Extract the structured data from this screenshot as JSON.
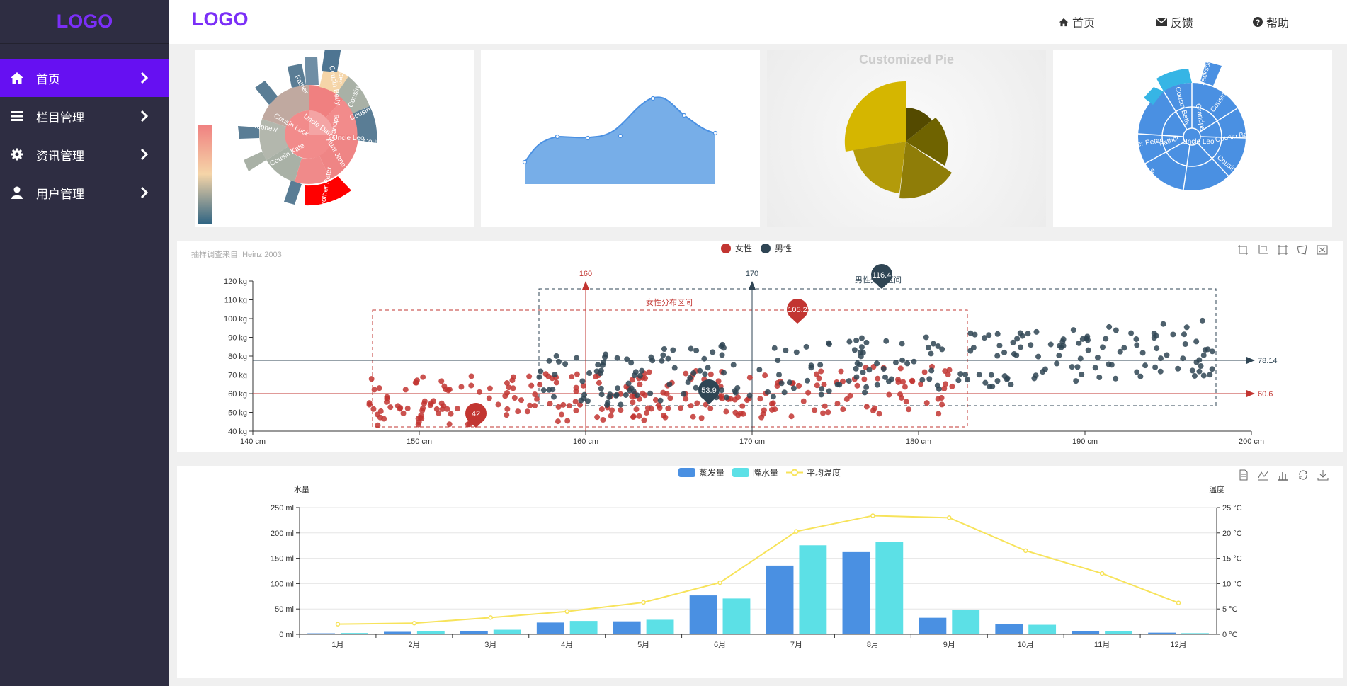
{
  "sidebar": {
    "logo": "LOGO",
    "items": [
      {
        "label": "首页",
        "icon": "home-icon",
        "active": true
      },
      {
        "label": "栏目管理",
        "icon": "list-icon",
        "active": false
      },
      {
        "label": "资讯管理",
        "icon": "gear-icon",
        "active": false
      },
      {
        "label": "用户管理",
        "icon": "user-icon",
        "active": false
      }
    ]
  },
  "header": {
    "logo": "LOGO",
    "nav": [
      {
        "label": "首页",
        "icon": "home-icon"
      },
      {
        "label": "反馈",
        "icon": "envelope-icon"
      },
      {
        "label": "帮助",
        "icon": "question-circle-icon"
      }
    ]
  },
  "colors": {
    "sidebar_bg": "#2e2d42",
    "accent": "#6610f2",
    "logo": "#7b2ff7",
    "female": "#c23531",
    "male": "#2f4554",
    "evaporation": "#4a90e2",
    "precipitation": "#5ce0e6",
    "temperature": "#f7e35a"
  },
  "sunburst_1": {
    "labels": [
      "Uncle Leo",
      "Cousin Ben",
      "Cousin Jack",
      "Me",
      "Brother Peter",
      "Aunt Jane",
      "Cousin Kate",
      "Nephew",
      "Cousin Luck",
      "Uncle Dan",
      "Grandpa",
      "Jackson",
      "Cousin Mary",
      "Cousin Betty",
      "Father"
    ]
  },
  "pie_title": "Customized Pie",
  "sunburst_2": {
    "labels": [
      "Jackson",
      "Cousin Mary",
      "Uncle Leo",
      "Cousin Ben",
      "Father",
      "Brother Peter",
      "Me",
      "Cousin Jack",
      "Grandpa",
      "Cousin Betty"
    ]
  },
  "scatter": {
    "subtitle": "抽样调查来自: Heinz  2003",
    "legend": [
      "女性",
      "男性"
    ],
    "x_ticks": [
      "140 cm",
      "150 cm",
      "160 cm",
      "170 cm",
      "180 cm",
      "190 cm",
      "200 cm"
    ],
    "y_ticks": [
      "40 kg",
      "50 kg",
      "60 kg",
      "70 kg",
      "80 kg",
      "90 kg",
      "100 kg",
      "110 kg",
      "120 kg"
    ],
    "female_area_label": "女性分布区间",
    "male_area_label": "男性分布区间",
    "female_max": "105.2",
    "female_min": "42",
    "male_max": "116.4",
    "male_min": "53.9",
    "female_avg": "60.6",
    "male_avg": "78.14",
    "female_vline": "160",
    "male_vline": "170"
  },
  "chart_data": [
    {
      "type": "scatter",
      "title": "",
      "subtitle": "抽样调查来自: Heinz  2003",
      "xlim": [
        140,
        200
      ],
      "ylim": [
        40,
        120
      ],
      "x_unit": "cm",
      "y_unit": "kg",
      "legend": "top-center",
      "series": [
        {
          "name": "女性",
          "color": "#c23531"
        },
        {
          "name": "男性",
          "color": "#2f4554"
        }
      ],
      "mark_points": {
        "女性": {
          "max": 105.2,
          "min": 42
        },
        "男性": {
          "max": 116.4,
          "min": 53.9
        }
      },
      "mark_lines": {
        "女性_avg": 60.6,
        "男性_avg": 78.14,
        "女性_x": 160,
        "男性_x": 170
      }
    },
    {
      "type": "bar",
      "categories": [
        "1月",
        "2月",
        "3月",
        "4月",
        "5月",
        "6月",
        "7月",
        "8月",
        "9月",
        "10月",
        "11月",
        "12月"
      ],
      "series": [
        {
          "name": "蒸发量",
          "values": [
            2.0,
            4.9,
            7.0,
            23.2,
            25.6,
            76.7,
            135.6,
            162.2,
            32.6,
            20.0,
            6.4,
            3.3
          ]
        },
        {
          "name": "降水量",
          "values": [
            2.6,
            5.9,
            9.0,
            26.4,
            28.7,
            70.7,
            175.6,
            182.2,
            48.7,
            18.8,
            6.0,
            2.3
          ]
        },
        {
          "name": "平均温度",
          "type": "line",
          "axis": "right",
          "values": [
            2.0,
            2.2,
            3.3,
            4.5,
            6.3,
            10.2,
            20.3,
            23.4,
            23.0,
            16.5,
            12.0,
            6.2
          ]
        }
      ],
      "ylabel": "水量",
      "ylabel_right": "温度",
      "ylim": [
        0,
        250
      ],
      "ylim_right": [
        0,
        25
      ],
      "y_ticks": [
        "0 ml",
        "50 ml",
        "100 ml",
        "150 ml",
        "200 ml",
        "250 ml"
      ],
      "y_ticks_right": [
        "0 °C",
        "5 °C",
        "10 °C",
        "15 °C",
        "20 °C",
        "25 °C"
      ],
      "legend": "top-center"
    }
  ]
}
